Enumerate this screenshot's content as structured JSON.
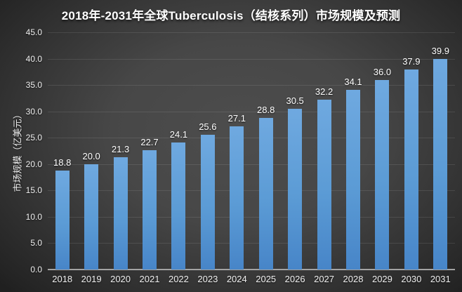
{
  "chart_data": {
    "type": "bar",
    "title": "2018年-2031年全球Tuberculosis（结核系列）市场规模及预测",
    "ylabel": "市场规模（亿美元）",
    "xlabel": "",
    "categories": [
      "2018",
      "2019",
      "2020",
      "2021",
      "2022",
      "2023",
      "2024",
      "2025",
      "2026",
      "2027",
      "2028",
      "2029",
      "2030",
      "2031"
    ],
    "values": [
      18.8,
      20.0,
      21.3,
      22.7,
      24.1,
      25.6,
      27.1,
      28.8,
      30.5,
      32.2,
      34.1,
      36.0,
      37.9,
      39.9
    ],
    "data_labels": [
      "18.8",
      "20.0",
      "21.3",
      "22.7",
      "24.1",
      "25.6",
      "27.1",
      "28.8",
      "30.5",
      "32.2",
      "34.1",
      "36.0",
      "37.9",
      "39.9"
    ],
    "ylim": [
      0,
      45
    ],
    "ytick_step": 5,
    "ytick_labels": [
      "0.0",
      "5.0",
      "10.0",
      "15.0",
      "20.0",
      "25.0",
      "30.0",
      "35.0",
      "40.0",
      "45.0"
    ],
    "grid": true,
    "legend": "none",
    "colors": {
      "bar_top": "#6FA9E0",
      "bar_mid": "#5B9BD5",
      "bar_bottom": "#4785C8",
      "background_center": "#4C4C4C",
      "background_edge": "#232323",
      "gridline": "rgba(255,255,255,0.10)",
      "axis_line": "#A3A3A3",
      "tick_text": "#F0F0F0",
      "label_text": "#FFFFFF"
    }
  }
}
